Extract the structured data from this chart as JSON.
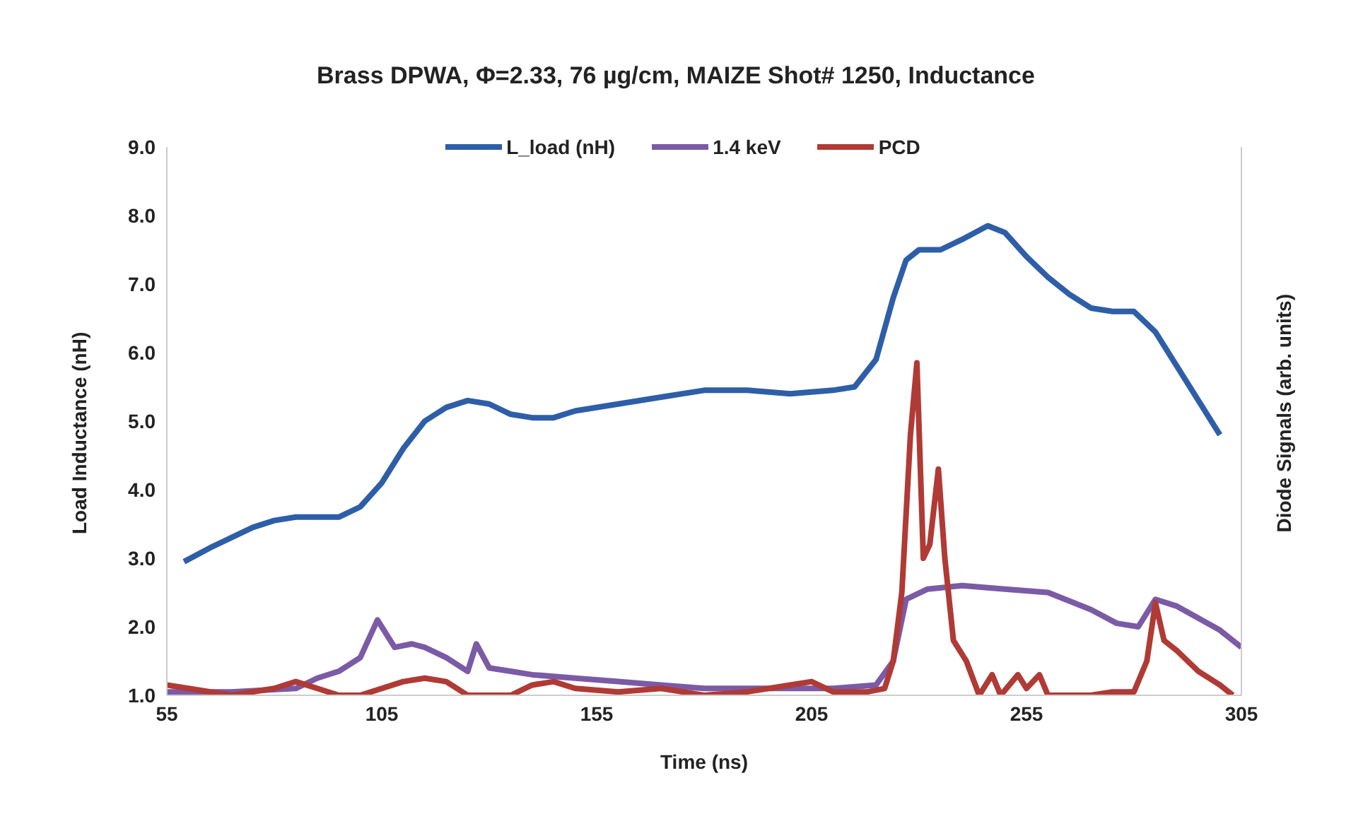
{
  "chart_data": {
    "type": "line",
    "title": "Brass DPWA, Φ=2.33, 76 µg/cm, MAIZE Shot# 1250, Inductance",
    "xlabel": "Time (ns)",
    "ylabel": "Load Inductance (nH)",
    "y2label": "Diode Signals (arb. units)",
    "xlim": [
      55,
      305
    ],
    "xticks": [
      55,
      105,
      155,
      205,
      255,
      305
    ],
    "ylim": [
      1,
      9
    ],
    "yticks": [
      {
        "value": 1,
        "label": "1.0"
      },
      {
        "value": 2,
        "label": "2.0"
      },
      {
        "value": 3,
        "label": "3.0"
      },
      {
        "value": 4,
        "label": "4.0"
      },
      {
        "value": 5,
        "label": "5.0"
      },
      {
        "value": 6,
        "label": "6.0"
      },
      {
        "value": 7,
        "label": "7.0"
      },
      {
        "value": 8,
        "label": "8.0"
      },
      {
        "value": 9,
        "label": "9.0"
      }
    ],
    "grid": false,
    "legend": "top",
    "marker": "none",
    "line_style": "solid",
    "series": [
      {
        "name": "L_load (nH)",
        "color": "#2e5ea8",
        "x": [
          59,
          65,
          70,
          75,
          80,
          85,
          90,
          95,
          100,
          105,
          110,
          115,
          120,
          125,
          130,
          135,
          140,
          145,
          150,
          160,
          170,
          180,
          190,
          200,
          210,
          215,
          220,
          224,
          227,
          230,
          235,
          240,
          246,
          250,
          255,
          260,
          265,
          270,
          275,
          280,
          285,
          290,
          295,
          300
        ],
        "values": [
          2.95,
          3.15,
          3.3,
          3.45,
          3.55,
          3.6,
          3.6,
          3.6,
          3.75,
          4.1,
          4.6,
          5.0,
          5.2,
          5.3,
          5.25,
          5.1,
          5.05,
          5.05,
          5.15,
          5.25,
          5.35,
          5.45,
          5.45,
          5.4,
          5.45,
          5.5,
          5.9,
          6.8,
          7.35,
          7.5,
          7.5,
          7.65,
          7.85,
          7.75,
          7.4,
          7.1,
          6.85,
          6.65,
          6.6,
          6.6,
          6.3,
          5.8,
          5.3,
          4.8
        ]
      },
      {
        "name": "1.4 keV",
        "color": "#7b5aa6",
        "x": [
          55,
          70,
          85,
          90,
          95,
          100,
          104,
          108,
          112,
          115,
          120,
          125,
          127,
          130,
          135,
          140,
          150,
          160,
          170,
          180,
          190,
          200,
          210,
          220,
          224,
          227,
          232,
          240,
          250,
          260,
          270,
          276,
          281,
          285,
          290,
          300,
          305
        ],
        "values": [
          1.05,
          1.05,
          1.1,
          1.25,
          1.35,
          1.55,
          2.1,
          1.7,
          1.75,
          1.7,
          1.55,
          1.35,
          1.75,
          1.4,
          1.35,
          1.3,
          1.25,
          1.2,
          1.15,
          1.1,
          1.1,
          1.1,
          1.1,
          1.15,
          1.5,
          2.4,
          2.55,
          2.6,
          2.55,
          2.5,
          2.25,
          2.05,
          2.0,
          2.4,
          2.3,
          1.95,
          1.7
        ]
      },
      {
        "name": "PCD",
        "color": "#b03a35",
        "x": [
          55,
          60,
          70,
          80,
          85,
          90,
          95,
          100,
          110,
          115,
          120,
          125,
          135,
          140,
          145,
          150,
          160,
          170,
          180,
          190,
          200,
          205,
          210,
          218,
          222,
          224,
          226,
          228,
          229.5,
          231,
          232.5,
          234.5,
          236,
          238,
          241,
          244,
          247,
          249,
          253,
          255,
          258,
          260,
          263,
          270,
          275,
          280,
          283,
          285,
          287,
          290,
          295,
          300,
          303
        ],
        "values": [
          1.15,
          1.1,
          1.0,
          1.1,
          1.2,
          1.1,
          1.0,
          1.0,
          1.2,
          1.25,
          1.2,
          1.0,
          1.0,
          1.15,
          1.2,
          1.1,
          1.05,
          1.1,
          1.0,
          1.05,
          1.15,
          1.2,
          1.05,
          1.05,
          1.1,
          1.5,
          2.5,
          4.8,
          5.85,
          3.0,
          3.2,
          4.3,
          3.0,
          1.8,
          1.5,
          1.0,
          1.3,
          1.0,
          1.3,
          1.1,
          1.3,
          1.0,
          1.0,
          1.0,
          1.05,
          1.05,
          1.5,
          2.35,
          1.8,
          1.65,
          1.35,
          1.15,
          1.0
        ]
      }
    ]
  }
}
